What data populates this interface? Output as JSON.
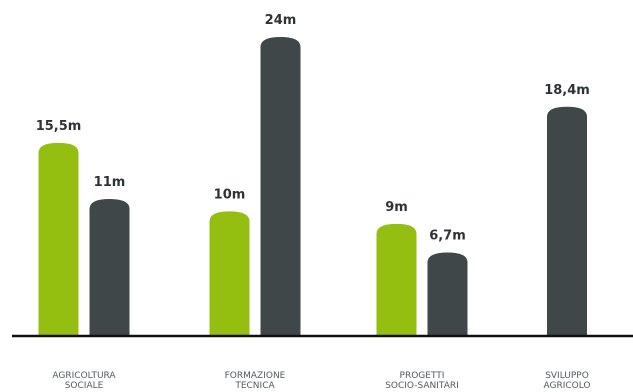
{
  "chart_data": {
    "type": "bar",
    "categories": [
      [
        "AGRICOLTURA",
        "SOCIALE"
      ],
      [
        "FORMAZIONE",
        "TECNICA"
      ],
      [
        "PROGETTI",
        "SOCIO-SANITARI"
      ],
      [
        "SVILUPPO",
        "AGRICOLO"
      ]
    ],
    "series": [
      {
        "values": [
          15.5,
          10,
          9,
          null
        ],
        "labels": [
          "15,5m",
          "10m",
          "9m",
          ""
        ],
        "color": "#95bf10"
      },
      {
        "values": [
          11,
          24,
          6.7,
          18.4
        ],
        "labels": [
          "11m",
          "24m",
          "6,7m",
          "18,4m"
        ],
        "color": "#3f4748"
      }
    ],
    "ylim": [
      0,
      24
    ],
    "grid": false,
    "legend": false,
    "baseline_color": "#111111"
  }
}
